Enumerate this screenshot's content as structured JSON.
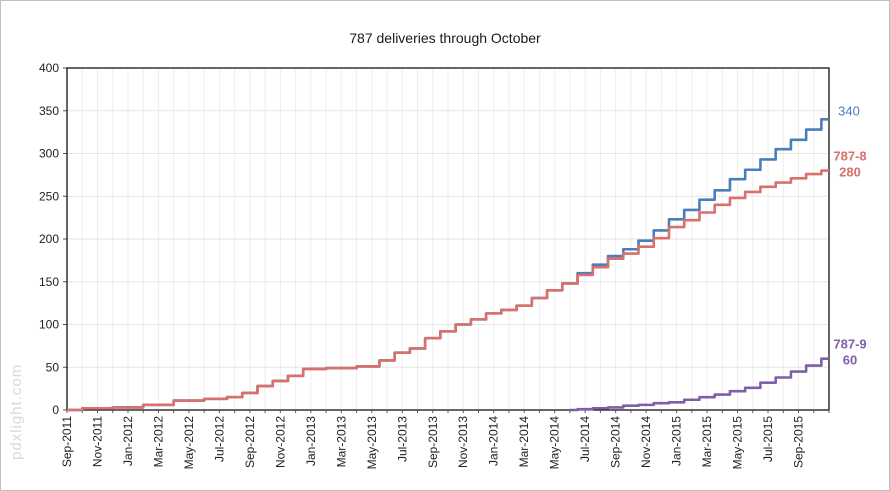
{
  "chart_data": {
    "type": "line",
    "title": "787 deliveries  through October",
    "watermark": "pdxlight.com",
    "ylim": [
      0,
      400
    ],
    "yticks": [
      0,
      50,
      100,
      150,
      200,
      250,
      300,
      350,
      400
    ],
    "x_range": [
      "2011-09",
      "2015-11"
    ],
    "x_tick_labels": [
      "Sep-2011",
      "Nov-2011",
      "Jan-2012",
      "Mar-2012",
      "May-2012",
      "Jul-2012",
      "Sep-2012",
      "Nov-2012",
      "Jan-2013",
      "Mar-2013",
      "May-2013",
      "Jul-2013",
      "Sep-2013",
      "Nov-2013",
      "Jan-2014",
      "Mar-2014",
      "May-2014",
      "Jul-2014",
      "Sep-2014",
      "Nov-2014",
      "Jan-2015",
      "Mar-2015",
      "May-2015",
      "Jul-2015",
      "Sep-2015"
    ],
    "grid": true,
    "legend": "none",
    "series": [
      {
        "key": "total",
        "end_label": "340",
        "color": "#4a7ebb",
        "points": [
          [
            "2011-09",
            0
          ],
          [
            "2011-11",
            2
          ],
          [
            "2012-01",
            3
          ],
          [
            "2012-03",
            6
          ],
          [
            "2012-05",
            11
          ],
          [
            "2012-07",
            13
          ],
          [
            "2012-08",
            15
          ],
          [
            "2012-09",
            20
          ],
          [
            "2012-10",
            28
          ],
          [
            "2012-11",
            34
          ],
          [
            "2012-12",
            40
          ],
          [
            "2013-01",
            48
          ],
          [
            "2013-03",
            49
          ],
          [
            "2013-05",
            51
          ],
          [
            "2013-06",
            58
          ],
          [
            "2013-07",
            67
          ],
          [
            "2013-08",
            72
          ],
          [
            "2013-09",
            84
          ],
          [
            "2013-10",
            92
          ],
          [
            "2013-11",
            100
          ],
          [
            "2013-12",
            106
          ],
          [
            "2014-01",
            113
          ],
          [
            "2014-02",
            117
          ],
          [
            "2014-03",
            122
          ],
          [
            "2014-04",
            131
          ],
          [
            "2014-05",
            140
          ],
          [
            "2014-06",
            148
          ],
          [
            "2014-07",
            160
          ],
          [
            "2014-08",
            170
          ],
          [
            "2014-09",
            180
          ],
          [
            "2014-10",
            188
          ],
          [
            "2014-11",
            198
          ],
          [
            "2014-12",
            210
          ],
          [
            "2015-01",
            223
          ],
          [
            "2015-02",
            234
          ],
          [
            "2015-03",
            246
          ],
          [
            "2015-04",
            257
          ],
          [
            "2015-05",
            270
          ],
          [
            "2015-06",
            281
          ],
          [
            "2015-07",
            293
          ],
          [
            "2015-08",
            305
          ],
          [
            "2015-09",
            316
          ],
          [
            "2015-10",
            328
          ],
          [
            "2015-11",
            340
          ]
        ]
      },
      {
        "key": "787-8",
        "name": "787-8",
        "end_label": "280",
        "color": "#d9706b",
        "points": [
          [
            "2011-09",
            0
          ],
          [
            "2011-11",
            2
          ],
          [
            "2012-01",
            3
          ],
          [
            "2012-03",
            6
          ],
          [
            "2012-05",
            11
          ],
          [
            "2012-07",
            13
          ],
          [
            "2012-08",
            15
          ],
          [
            "2012-09",
            20
          ],
          [
            "2012-10",
            28
          ],
          [
            "2012-11",
            34
          ],
          [
            "2012-12",
            40
          ],
          [
            "2013-01",
            48
          ],
          [
            "2013-03",
            49
          ],
          [
            "2013-05",
            51
          ],
          [
            "2013-06",
            58
          ],
          [
            "2013-07",
            67
          ],
          [
            "2013-08",
            72
          ],
          [
            "2013-09",
            84
          ],
          [
            "2013-10",
            92
          ],
          [
            "2013-11",
            100
          ],
          [
            "2013-12",
            106
          ],
          [
            "2014-01",
            113
          ],
          [
            "2014-02",
            117
          ],
          [
            "2014-03",
            122
          ],
          [
            "2014-04",
            131
          ],
          [
            "2014-05",
            140
          ],
          [
            "2014-06",
            148
          ],
          [
            "2014-07",
            158
          ],
          [
            "2014-08",
            167
          ],
          [
            "2014-09",
            177
          ],
          [
            "2014-10",
            183
          ],
          [
            "2014-11",
            191
          ],
          [
            "2014-12",
            201
          ],
          [
            "2015-01",
            214
          ],
          [
            "2015-02",
            222
          ],
          [
            "2015-03",
            231
          ],
          [
            "2015-04",
            240
          ],
          [
            "2015-05",
            248
          ],
          [
            "2015-06",
            255
          ],
          [
            "2015-07",
            261
          ],
          [
            "2015-08",
            266
          ],
          [
            "2015-09",
            271
          ],
          [
            "2015-10",
            276
          ],
          [
            "2015-11",
            280
          ]
        ]
      },
      {
        "key": "787-9",
        "name": "787-9",
        "end_label": "60",
        "color": "#7f5fa9",
        "points": [
          [
            "2014-06",
            0
          ],
          [
            "2014-07",
            1
          ],
          [
            "2014-08",
            2
          ],
          [
            "2014-09",
            3
          ],
          [
            "2014-10",
            5
          ],
          [
            "2014-11",
            6
          ],
          [
            "2014-12",
            8
          ],
          [
            "2015-01",
            9
          ],
          [
            "2015-02",
            12
          ],
          [
            "2015-03",
            15
          ],
          [
            "2015-04",
            18
          ],
          [
            "2015-05",
            22
          ],
          [
            "2015-06",
            26
          ],
          [
            "2015-07",
            32
          ],
          [
            "2015-08",
            38
          ],
          [
            "2015-09",
            45
          ],
          [
            "2015-10",
            52
          ],
          [
            "2015-11",
            60
          ]
        ]
      }
    ]
  }
}
